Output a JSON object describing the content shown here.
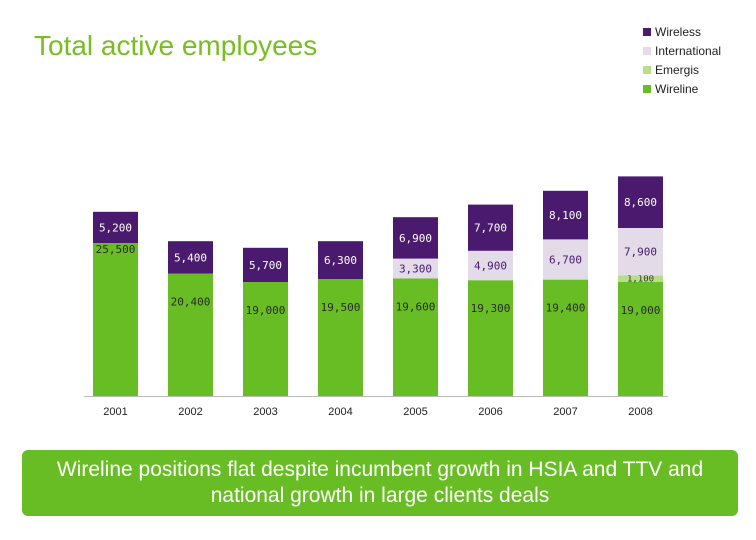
{
  "title": "Total active employees",
  "legend": [
    {
      "name": "Wireless",
      "color": "#4a1a6e"
    },
    {
      "name": "International",
      "color": "#e3dbe8"
    },
    {
      "name": "Emergis",
      "color": "#b7df8a"
    },
    {
      "name": "Wireline",
      "color": "#68bd24"
    }
  ],
  "chart_data": {
    "type": "bar",
    "stacked": true,
    "categories": [
      "2001",
      "2002",
      "2003",
      "2004",
      "2005",
      "2006",
      "2007",
      "2008"
    ],
    "series": [
      {
        "name": "Wireline",
        "color": "#68bd24",
        "values": [
          25500,
          20400,
          19000,
          19500,
          19600,
          19300,
          19400,
          19000
        ],
        "labels": [
          "25,500",
          "20,400",
          "19,000",
          "19,500",
          "19,600",
          "19,300",
          "19,400",
          "19,000"
        ]
      },
      {
        "name": "Emergis",
        "color": "#b7df8a",
        "values": [
          0,
          0,
          0,
          0,
          0,
          0,
          0,
          1100
        ],
        "labels": [
          "",
          "",
          "",
          "",
          "",
          "",
          "",
          "1,100"
        ]
      },
      {
        "name": "International",
        "color": "#e3dbe8",
        "values": [
          0,
          0,
          0,
          0,
          3300,
          4900,
          6700,
          7900
        ],
        "labels": [
          "",
          "",
          "",
          "",
          "3,300",
          "4,900",
          "6,700",
          "7,900"
        ]
      },
      {
        "name": "Wireless",
        "color": "#4a1a6e",
        "values": [
          5200,
          5400,
          5700,
          6300,
          6900,
          7700,
          8100,
          8600
        ],
        "labels": [
          "5,200",
          "5,400",
          "5,700",
          "6,300",
          "6,900",
          "7,700",
          "8,100",
          "8,600"
        ]
      }
    ],
    "title": "Total active employees",
    "xlabel": "",
    "ylabel": "",
    "ylim": [
      0,
      40000
    ],
    "grid": false,
    "legend_position": "top-right"
  },
  "banner": "Wireline positions flat despite incumbent growth in HSIA and TTV and national growth in large clients deals"
}
